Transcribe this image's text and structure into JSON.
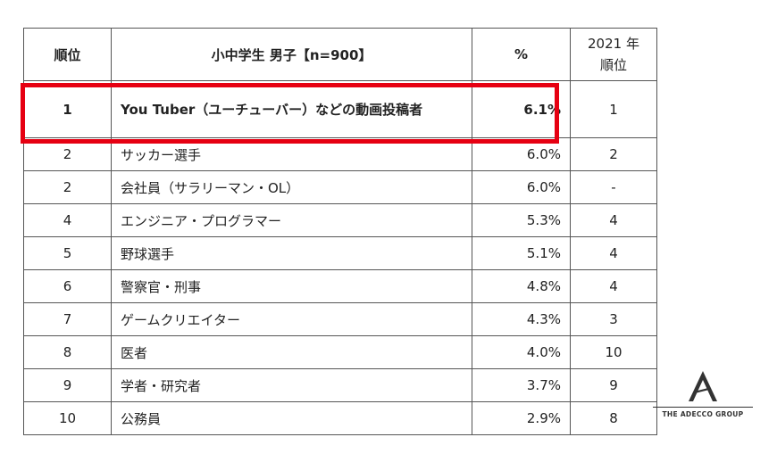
{
  "table": {
    "headers": {
      "rank": "順位",
      "job": "小中学生 男子【n=900】",
      "pct": "%",
      "prev": "2021 年\n順位"
    },
    "rows": [
      {
        "rank": "1",
        "job": "You Tuber（ユーチューバー）などの動画投稿者",
        "pct": "6.1%",
        "prev": "1"
      },
      {
        "rank": "2",
        "job": "サッカー選手",
        "pct": "6.0%",
        "prev": "2"
      },
      {
        "rank": "2",
        "job": "会社員（サラリーマン・OL）",
        "pct": "6.0%",
        "prev": "-"
      },
      {
        "rank": "4",
        "job": "エンジニア・プログラマー",
        "pct": "5.3%",
        "prev": "4"
      },
      {
        "rank": "5",
        "job": "野球選手",
        "pct": "5.1%",
        "prev": "4"
      },
      {
        "rank": "6",
        "job": "警察官・刑事",
        "pct": "4.8%",
        "prev": "4"
      },
      {
        "rank": "7",
        "job": "ゲームクリエイター",
        "pct": "4.3%",
        "prev": "3"
      },
      {
        "rank": "8",
        "job": "医者",
        "pct": "4.0%",
        "prev": "10"
      },
      {
        "rank": "9",
        "job": "学者・研究者",
        "pct": "3.7%",
        "prev": "9"
      },
      {
        "rank": "10",
        "job": "公務員",
        "pct": "2.9%",
        "prev": "8"
      }
    ]
  },
  "highlight_color": "#e60012",
  "logo": {
    "icon": "adecco-a-logo-icon",
    "text": "THE ADECCO GROUP"
  }
}
